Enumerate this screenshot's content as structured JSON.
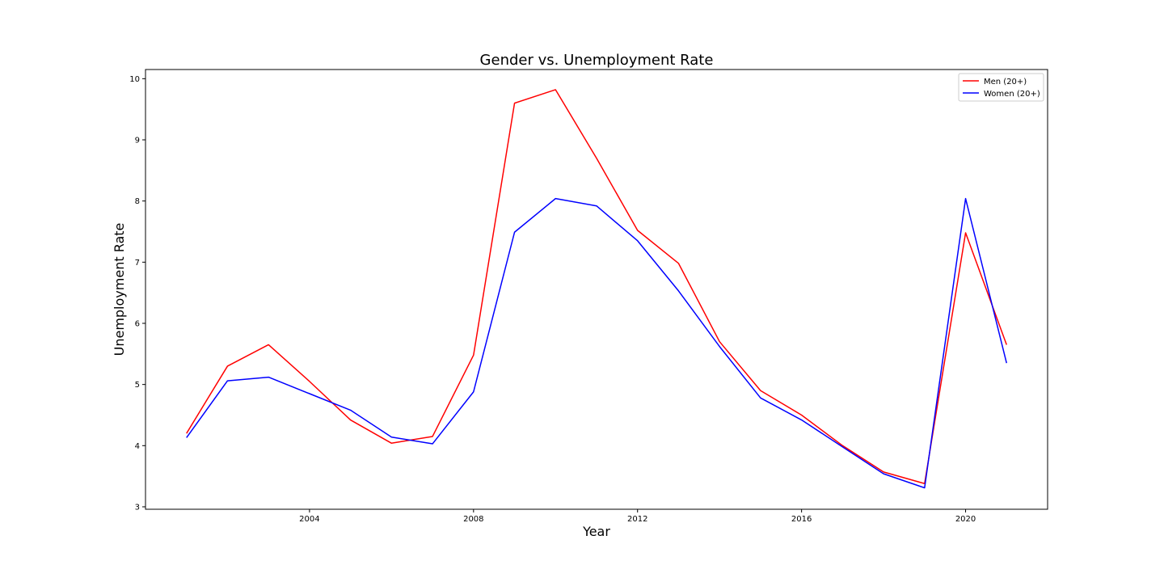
{
  "chart_data": {
    "type": "line",
    "title": "Gender vs. Unemployment Rate",
    "xlabel": "Year",
    "ylabel": "Unemployment Rate",
    "x": [
      2001,
      2002,
      2003,
      2004,
      2005,
      2006,
      2007,
      2008,
      2009,
      2010,
      2011,
      2012,
      2013,
      2014,
      2015,
      2016,
      2017,
      2018,
      2019,
      2020,
      2021
    ],
    "xlim": [
      2000,
      2022
    ],
    "ylim": [
      2.96,
      10.15
    ],
    "xticks": [
      2004,
      2008,
      2012,
      2016,
      2020
    ],
    "yticks": [
      3,
      4,
      5,
      6,
      7,
      8,
      9,
      10
    ],
    "grid": false,
    "legend_position": "top-right",
    "series": [
      {
        "name": "Men (20+)",
        "color": "#ff0000",
        "values": [
          4.2,
          5.3,
          5.65,
          5.05,
          4.42,
          4.04,
          4.15,
          5.48,
          9.6,
          9.82,
          8.7,
          7.52,
          6.98,
          5.7,
          4.9,
          4.5,
          4.0,
          3.57,
          3.38,
          7.48,
          5.65
        ]
      },
      {
        "name": "Women (20+)",
        "color": "#0000ff",
        "values": [
          4.13,
          5.06,
          5.12,
          4.85,
          4.58,
          4.14,
          4.03,
          4.88,
          7.49,
          8.04,
          7.92,
          7.35,
          6.53,
          5.62,
          4.78,
          4.42,
          3.98,
          3.54,
          3.31,
          8.04,
          5.35
        ]
      }
    ]
  }
}
